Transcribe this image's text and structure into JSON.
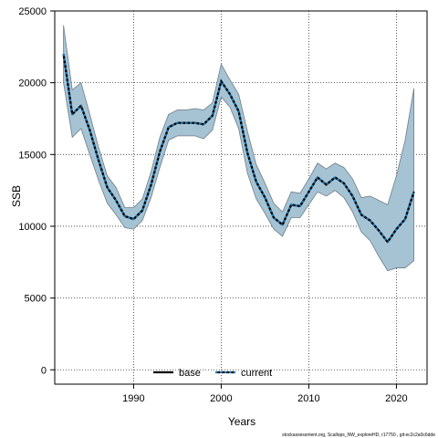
{
  "chart_data": {
    "type": "line",
    "title": "",
    "xlabel": "Years",
    "ylabel": "SSB",
    "xlim": [
      1981,
      2023.5
    ],
    "ylim": [
      -1000,
      25000
    ],
    "x_ticks": [
      1990,
      2000,
      2010,
      2020
    ],
    "y_ticks": [
      0,
      5000,
      10000,
      15000,
      20000,
      25000
    ],
    "grid": true,
    "legend_position": "bottom-center",
    "colors": {
      "band_fill": "#a6c3d4",
      "band_edge": "#6f7d86",
      "base": "#000000",
      "current": "#1f77b4"
    },
    "x": [
      1982,
      1983,
      1984,
      1985,
      1986,
      1987,
      1988,
      1989,
      1990,
      1991,
      1992,
      1993,
      1994,
      1995,
      1996,
      1997,
      1998,
      1999,
      2000,
      2001,
      2002,
      2003,
      2004,
      2005,
      2006,
      2007,
      2008,
      2009,
      2010,
      2011,
      2012,
      2013,
      2014,
      2015,
      2016,
      2017,
      2018,
      2019,
      2020,
      2021,
      2022
    ],
    "band": {
      "upper": [
        24000,
        19500,
        20000,
        17800,
        15500,
        13500,
        12700,
        11300,
        11300,
        11900,
        13800,
        16200,
        17800,
        18100,
        18100,
        18200,
        18100,
        18600,
        21300,
        20200,
        19200,
        16600,
        14300,
        13000,
        11600,
        11000,
        12400,
        12300,
        13300,
        14400,
        14000,
        14400,
        14100,
        13300,
        12000,
        12100,
        11800,
        11500,
        13500,
        16000,
        19600
      ],
      "lower": [
        20000,
        16200,
        16800,
        15000,
        13200,
        11600,
        10800,
        9900,
        9800,
        10400,
        12000,
        14100,
        16000,
        16300,
        16300,
        16300,
        16100,
        16700,
        19000,
        18300,
        16800,
        13700,
        11900,
        10900,
        9800,
        9300,
        10600,
        10600,
        11500,
        12400,
        12100,
        12500,
        12000,
        11000,
        9600,
        9000,
        7900,
        6900,
        7100,
        7100,
        7600
      ]
    },
    "series": [
      {
        "name": "base",
        "values": [
          22000,
          17800,
          18400,
          16700,
          14600,
          12700,
          11800,
          10700,
          10500,
          11100,
          12900,
          15200,
          16900,
          17200,
          17200,
          17200,
          17100,
          17700,
          20100,
          19200,
          18000,
          15100,
          13100,
          12000,
          10600,
          10100,
          11500,
          11400,
          12400,
          13400,
          12900,
          13400,
          13000,
          12100,
          10800,
          10400,
          9700,
          8900,
          9800,
          10500,
          12400
        ]
      },
      {
        "name": "current",
        "values": [
          22000,
          17800,
          18400,
          16700,
          14600,
          12700,
          11800,
          10700,
          10500,
          11100,
          12900,
          15200,
          16900,
          17200,
          17200,
          17200,
          17100,
          17700,
          20100,
          19200,
          18000,
          15100,
          13100,
          12000,
          10600,
          10100,
          11500,
          11400,
          12400,
          13400,
          12900,
          13400,
          13000,
          12100,
          10800,
          10400,
          9700,
          8900,
          9800,
          10500,
          12400
        ]
      }
    ],
    "legend": [
      {
        "label": "base",
        "style": "solid"
      },
      {
        "label": "current",
        "style": "dashed"
      }
    ],
    "footer": "stockassessment.org, Scallops_NW_exploreHD, r17750 , git:ec2c2a0c6dde"
  }
}
